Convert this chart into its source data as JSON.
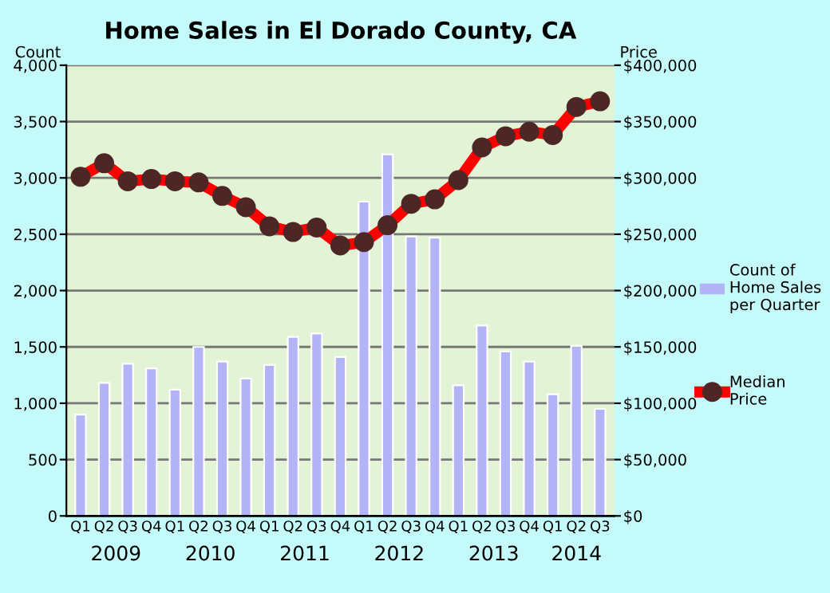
{
  "chart_data": {
    "type": "bar",
    "title": "Home Sales in El Dorado County, CA",
    "categories": [
      "Q1",
      "Q2",
      "Q3",
      "Q4",
      "Q1",
      "Q2",
      "Q3",
      "Q4",
      "Q1",
      "Q2",
      "Q3",
      "Q4",
      "Q1",
      "Q2",
      "Q3",
      "Q4",
      "Q1",
      "Q2",
      "Q3",
      "Q4",
      "Q1",
      "Q2",
      "Q3"
    ],
    "annotations": [
      "2009",
      "2010",
      "2011",
      "2012",
      "2013",
      "2014"
    ],
    "ylabel": "Count",
    "y2label": "Price",
    "ylim": [
      0,
      4000
    ],
    "yticks": [
      0,
      500,
      {
        "value": 1000,
        "label": "1,000"
      },
      {
        "value": 1500,
        "label": "1,500"
      },
      {
        "value": 2000,
        "label": "2,000"
      },
      {
        "value": 2500,
        "label": "2,500"
      },
      {
        "value": 3000,
        "label": "3,000"
      },
      {
        "value": 3500,
        "label": "3,500"
      },
      {
        "value": 4000,
        "label": "4,000"
      }
    ],
    "y2lim": [
      0,
      400000
    ],
    "y2ticks": [
      {
        "value": 0,
        "label": "$0"
      },
      {
        "value": 50000,
        "label": "$50,000"
      },
      {
        "value": 100000,
        "label": "$100,000"
      },
      {
        "value": 150000,
        "label": "$150,000"
      },
      {
        "value": 200000,
        "label": "$200,000"
      },
      {
        "value": 250000,
        "label": "$250,000"
      },
      {
        "value": 300000,
        "label": "$300,000"
      },
      {
        "value": 350000,
        "label": "$350,000"
      },
      {
        "value": 400000,
        "label": "$400,000"
      }
    ],
    "grid": "y",
    "legend": "right",
    "series": [
      {
        "name": "Count of Home Sales per Quarter",
        "color": "#b3b3f8",
        "values": [
          900,
          1180,
          1350,
          1310,
          1120,
          1500,
          1370,
          1220,
          1340,
          1590,
          1620,
          1410,
          2790,
          3210,
          2480,
          2470,
          1160,
          1690,
          1460,
          1370,
          1080,
          1510,
          950
        ]
      },
      {
        "name": "Median Price",
        "type": "line",
        "axis": "y2",
        "color": "#ff0000",
        "marker": "circle",
        "line_style": "solid",
        "values": [
          301000,
          313000,
          297000,
          299000,
          297000,
          296000,
          284000,
          274000,
          257000,
          252000,
          256000,
          240000,
          243000,
          258000,
          277000,
          281000,
          298000,
          327000,
          337000,
          341000,
          338000,
          363000,
          368000
        ]
      }
    ]
  }
}
